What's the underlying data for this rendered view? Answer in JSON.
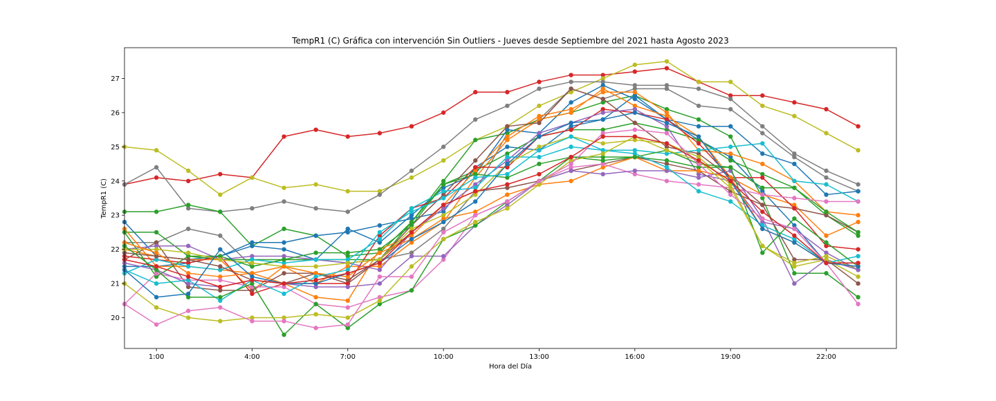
{
  "chart_data": {
    "type": "line",
    "title": "TempR1 (C) Gráfica con intervención Sin Outliers - Jueves desde Septiembre del 2021 hasta Agosto 2023",
    "xlabel": "Hora del Día",
    "ylabel": "TempR1 (C)",
    "x": [
      0,
      1,
      2,
      3,
      4,
      5,
      6,
      7,
      8,
      9,
      10,
      11,
      12,
      13,
      14,
      15,
      16,
      17,
      18,
      19,
      20,
      21,
      22,
      23
    ],
    "xlim": [
      0,
      24.2
    ],
    "ylim": [
      19.1,
      27.9
    ],
    "xticks": [
      1,
      4,
      7,
      10,
      13,
      16,
      19,
      22
    ],
    "xtick_labels": [
      "1:00",
      "4:00",
      "7:00",
      "10:00",
      "13:00",
      "16:00",
      "19:00",
      "22:00"
    ],
    "yticks": [
      20,
      21,
      22,
      23,
      24,
      25,
      26,
      27
    ],
    "ytick_labels": [
      "20",
      "21",
      "22",
      "23",
      "24",
      "25",
      "26",
      "27"
    ],
    "grid": false,
    "legend": "none",
    "palette": [
      "#1f77b4",
      "#ff7f0e",
      "#2ca02c",
      "#d62728",
      "#9467bd",
      "#8c564b",
      "#e377c2",
      "#7f7f7f",
      "#bcbd22",
      "#17becf"
    ],
    "series": [
      {
        "color": "#d62728",
        "values": [
          23.9,
          24.1,
          24.0,
          24.2,
          24.1,
          25.3,
          25.5,
          25.3,
          25.4,
          25.6,
          26.0,
          26.6,
          26.6,
          26.9,
          27.1,
          27.1,
          27.2,
          27.3,
          26.9,
          26.5,
          26.5,
          26.3,
          26.1,
          25.6
        ]
      },
      {
        "color": "#bcbd22",
        "values": [
          25.0,
          24.9,
          24.3,
          23.6,
          24.1,
          23.8,
          23.9,
          23.7,
          23.7,
          24.1,
          24.6,
          25.2,
          25.6,
          26.2,
          26.6,
          27.0,
          27.4,
          27.5,
          26.9,
          26.9,
          26.2,
          25.9,
          25.4,
          24.9
        ]
      },
      {
        "color": "#7f7f7f",
        "values": [
          23.9,
          24.4,
          23.2,
          23.1,
          23.2,
          23.4,
          23.2,
          23.1,
          23.6,
          24.3,
          25.0,
          25.8,
          26.2,
          26.7,
          26.9,
          26.9,
          26.8,
          26.8,
          26.7,
          26.4,
          25.6,
          24.8,
          24.3,
          23.9
        ]
      },
      {
        "color": "#7f7f7f",
        "values": [
          22.2,
          22.2,
          22.6,
          22.4,
          21.5,
          21.7,
          21.7,
          21.6,
          21.7,
          21.9,
          22.6,
          23.7,
          25.4,
          25.8,
          26.7,
          26.4,
          26.7,
          26.7,
          26.2,
          26.1,
          25.4,
          24.7,
          24.1,
          23.7
        ]
      },
      {
        "color": "#2ca02c",
        "values": [
          23.1,
          23.1,
          23.3,
          23.1,
          22.1,
          22.6,
          22.4,
          21.8,
          21.9,
          22.8,
          24.0,
          25.2,
          25.4,
          25.8,
          26.0,
          26.3,
          26.5,
          26.1,
          25.8,
          25.3,
          23.5,
          21.3,
          21.3,
          20.6
        ]
      },
      {
        "color": "#1f77b4",
        "values": [
          22.8,
          21.8,
          21.7,
          21.8,
          22.2,
          22.2,
          22.4,
          22.5,
          22.7,
          22.9,
          23.1,
          24.4,
          25.0,
          24.9,
          25.6,
          25.8,
          26.5,
          25.8,
          25.6,
          25.6,
          24.8,
          24.5,
          23.6,
          23.7
        ]
      },
      {
        "color": "#1f77b4",
        "values": [
          21.5,
          21.5,
          21.6,
          21.8,
          22.1,
          22.0,
          21.7,
          22.6,
          22.2,
          23.0,
          23.8,
          24.2,
          25.5,
          25.4,
          26.3,
          26.8,
          26.4,
          25.8,
          25.2,
          24.7,
          23.7,
          22.7,
          21.6,
          21.6
        ]
      },
      {
        "color": "#2ca02c",
        "values": [
          22.5,
          22.5,
          21.8,
          21.7,
          21.7,
          21.7,
          21.7,
          21.7,
          21.7,
          22.8,
          23.9,
          24.3,
          24.8,
          25.3,
          25.5,
          25.5,
          25.7,
          25.5,
          25.2,
          24.6,
          24.2,
          23.8,
          23.0,
          22.4
        ]
      },
      {
        "color": "#ff7f0e",
        "values": [
          22.6,
          21.5,
          21.5,
          21.4,
          21.3,
          21.0,
          20.6,
          20.5,
          22.0,
          22.4,
          23.3,
          24.3,
          25.3,
          25.9,
          26.1,
          26.6,
          26.6,
          26.0,
          24.9,
          24.8,
          24.5,
          24.0,
          23.1,
          23.0
        ]
      },
      {
        "color": "#ff7f0e",
        "values": [
          22.0,
          21.8,
          21.7,
          21.7,
          20.8,
          21.5,
          21.0,
          21.5,
          21.5,
          22.2,
          22.8,
          24.1,
          25.2,
          25.8,
          26.0,
          26.7,
          26.2,
          25.9,
          25.3,
          24.1,
          23.6,
          23.3,
          22.4,
          22.8
        ]
      },
      {
        "color": "#8c564b",
        "values": [
          21.7,
          22.2,
          20.9,
          20.8,
          20.8,
          21.3,
          21.3,
          21.0,
          21.7,
          22.7,
          23.6,
          24.6,
          25.6,
          25.7,
          26.7,
          26.4,
          25.7,
          25.0,
          24.8,
          24.1,
          23.3,
          23.2,
          23.0,
          22.5
        ]
      },
      {
        "color": "#d62728",
        "values": [
          21.8,
          21.7,
          21.6,
          21.8,
          20.7,
          21.0,
          21.0,
          21.0,
          22.4,
          23.2,
          23.5,
          24.4,
          24.4,
          25.3,
          25.5,
          26.1,
          26.0,
          25.8,
          25.1,
          24.1,
          24.1,
          23.2,
          22.1,
          22.0
        ]
      },
      {
        "color": "#9467bd",
        "values": [
          22.0,
          22.1,
          22.1,
          21.7,
          21.8,
          21.8,
          21.7,
          21.6,
          21.4,
          22.5,
          23.2,
          23.9,
          24.6,
          25.4,
          25.7,
          26.0,
          26.1,
          25.6,
          24.2,
          24.0,
          22.8,
          22.6,
          21.9,
          21.4
        ]
      },
      {
        "color": "#17becf",
        "values": [
          21.3,
          21.7,
          21.5,
          21.4,
          21.7,
          21.6,
          21.7,
          21.7,
          22.3,
          23.2,
          23.7,
          23.8,
          24.7,
          24.7,
          25.0,
          24.9,
          24.9,
          24.8,
          24.9,
          25.0,
          25.1,
          24.0,
          23.9,
          23.4
        ]
      },
      {
        "color": "#2ca02c",
        "values": [
          22.5,
          21.2,
          21.8,
          21.8,
          21.5,
          21.7,
          21.9,
          21.9,
          22.0,
          22.7,
          23.9,
          24.2,
          24.1,
          24.5,
          24.7,
          24.7,
          24.7,
          24.6,
          24.4,
          24.4,
          23.8,
          23.8,
          23.1,
          22.5
        ]
      },
      {
        "color": "#8c564b",
        "values": [
          21.9,
          21.8,
          21.7,
          21.5,
          21.1,
          21.0,
          21.3,
          21.1,
          21.7,
          22.5,
          23.3,
          23.7,
          23.8,
          24.0,
          24.3,
          24.5,
          24.7,
          24.5,
          24.3,
          23.7,
          23.3,
          21.7,
          21.7,
          21.0
        ]
      },
      {
        "color": "#bcbd22",
        "values": [
          22.0,
          22.0,
          21.9,
          21.7,
          21.6,
          21.5,
          21.5,
          21.6,
          21.7,
          22.6,
          23.0,
          23.6,
          24.5,
          25.0,
          25.3,
          25.1,
          25.2,
          25.1,
          24.7,
          23.9,
          22.1,
          21.6,
          21.8,
          21.4
        ]
      },
      {
        "color": "#ff7f0e",
        "values": [
          22.2,
          21.9,
          21.3,
          21.2,
          21.3,
          21.5,
          21.3,
          21.2,
          21.9,
          22.3,
          22.9,
          23.1,
          23.6,
          23.9,
          24.0,
          24.4,
          24.7,
          24.3,
          24.3,
          24.1,
          22.6,
          22.2,
          21.6,
          21.5
        ]
      },
      {
        "color": "#e377c2",
        "values": [
          20.4,
          21.3,
          21.1,
          21.1,
          20.9,
          20.9,
          20.4,
          20.3,
          20.6,
          20.8,
          21.7,
          23.0,
          23.4,
          24.0,
          24.4,
          24.5,
          24.2,
          24.0,
          23.9,
          23.8,
          23.6,
          23.5,
          23.4,
          23.4
        ]
      },
      {
        "color": "#9467bd",
        "values": [
          21.6,
          21.4,
          21.0,
          20.9,
          21.1,
          21.0,
          20.9,
          20.9,
          21.0,
          21.8,
          21.8,
          22.7,
          23.3,
          24.0,
          24.3,
          24.2,
          24.3,
          24.3,
          24.1,
          24.3,
          22.9,
          21.0,
          21.7,
          21.4
        ]
      },
      {
        "color": "#17becf",
        "values": [
          21.4,
          21.0,
          21.1,
          20.5,
          21.1,
          20.7,
          21.2,
          21.4,
          22.5,
          23.1,
          23.5,
          24.1,
          24.2,
          24.9,
          25.3,
          24.9,
          24.8,
          24.4,
          23.7,
          23.4,
          22.7,
          22.3,
          21.6,
          21.8
        ]
      },
      {
        "color": "#2ca02c",
        "values": [
          22.1,
          21.4,
          20.6,
          20.6,
          21.0,
          19.5,
          20.4,
          19.7,
          20.4,
          20.8,
          22.3,
          22.7,
          23.4,
          24.0,
          24.7,
          24.6,
          24.7,
          24.9,
          24.5,
          24.4,
          21.9,
          22.9,
          22.2,
          21.5
        ]
      },
      {
        "color": "#bcbd22",
        "values": [
          21.0,
          20.3,
          20.0,
          19.9,
          20.0,
          20.0,
          20.1,
          20.0,
          20.5,
          21.5,
          22.3,
          22.8,
          23.2,
          23.9,
          24.6,
          24.8,
          25.3,
          24.9,
          24.6,
          23.8,
          22.1,
          21.5,
          21.7,
          21.2
        ]
      },
      {
        "color": "#e377c2",
        "values": [
          20.4,
          19.8,
          20.2,
          20.3,
          19.9,
          19.9,
          19.7,
          19.8,
          21.2,
          21.2,
          22.5,
          23.0,
          23.4,
          24.0,
          24.5,
          25.4,
          25.5,
          25.4,
          24.5,
          23.6,
          22.9,
          22.6,
          21.6,
          20.4
        ]
      },
      {
        "color": "#1f77b4",
        "values": [
          21.4,
          20.6,
          20.7,
          22.0,
          21.2,
          21.0,
          21.0,
          21.3,
          21.6,
          22.3,
          22.8,
          23.4,
          24.5,
          25.3,
          25.7,
          25.8,
          26.0,
          25.7,
          25.3,
          24.0,
          22.6,
          22.2,
          21.6,
          21.5
        ]
      },
      {
        "color": "#d62728",
        "values": [
          21.7,
          21.5,
          21.2,
          20.9,
          21.1,
          21.0,
          21.1,
          21.3,
          21.6,
          22.5,
          23.3,
          23.7,
          23.9,
          24.2,
          24.7,
          25.3,
          25.3,
          25.1,
          24.6,
          24.0,
          23.1,
          22.4,
          21.6,
          21.6
        ]
      }
    ]
  }
}
